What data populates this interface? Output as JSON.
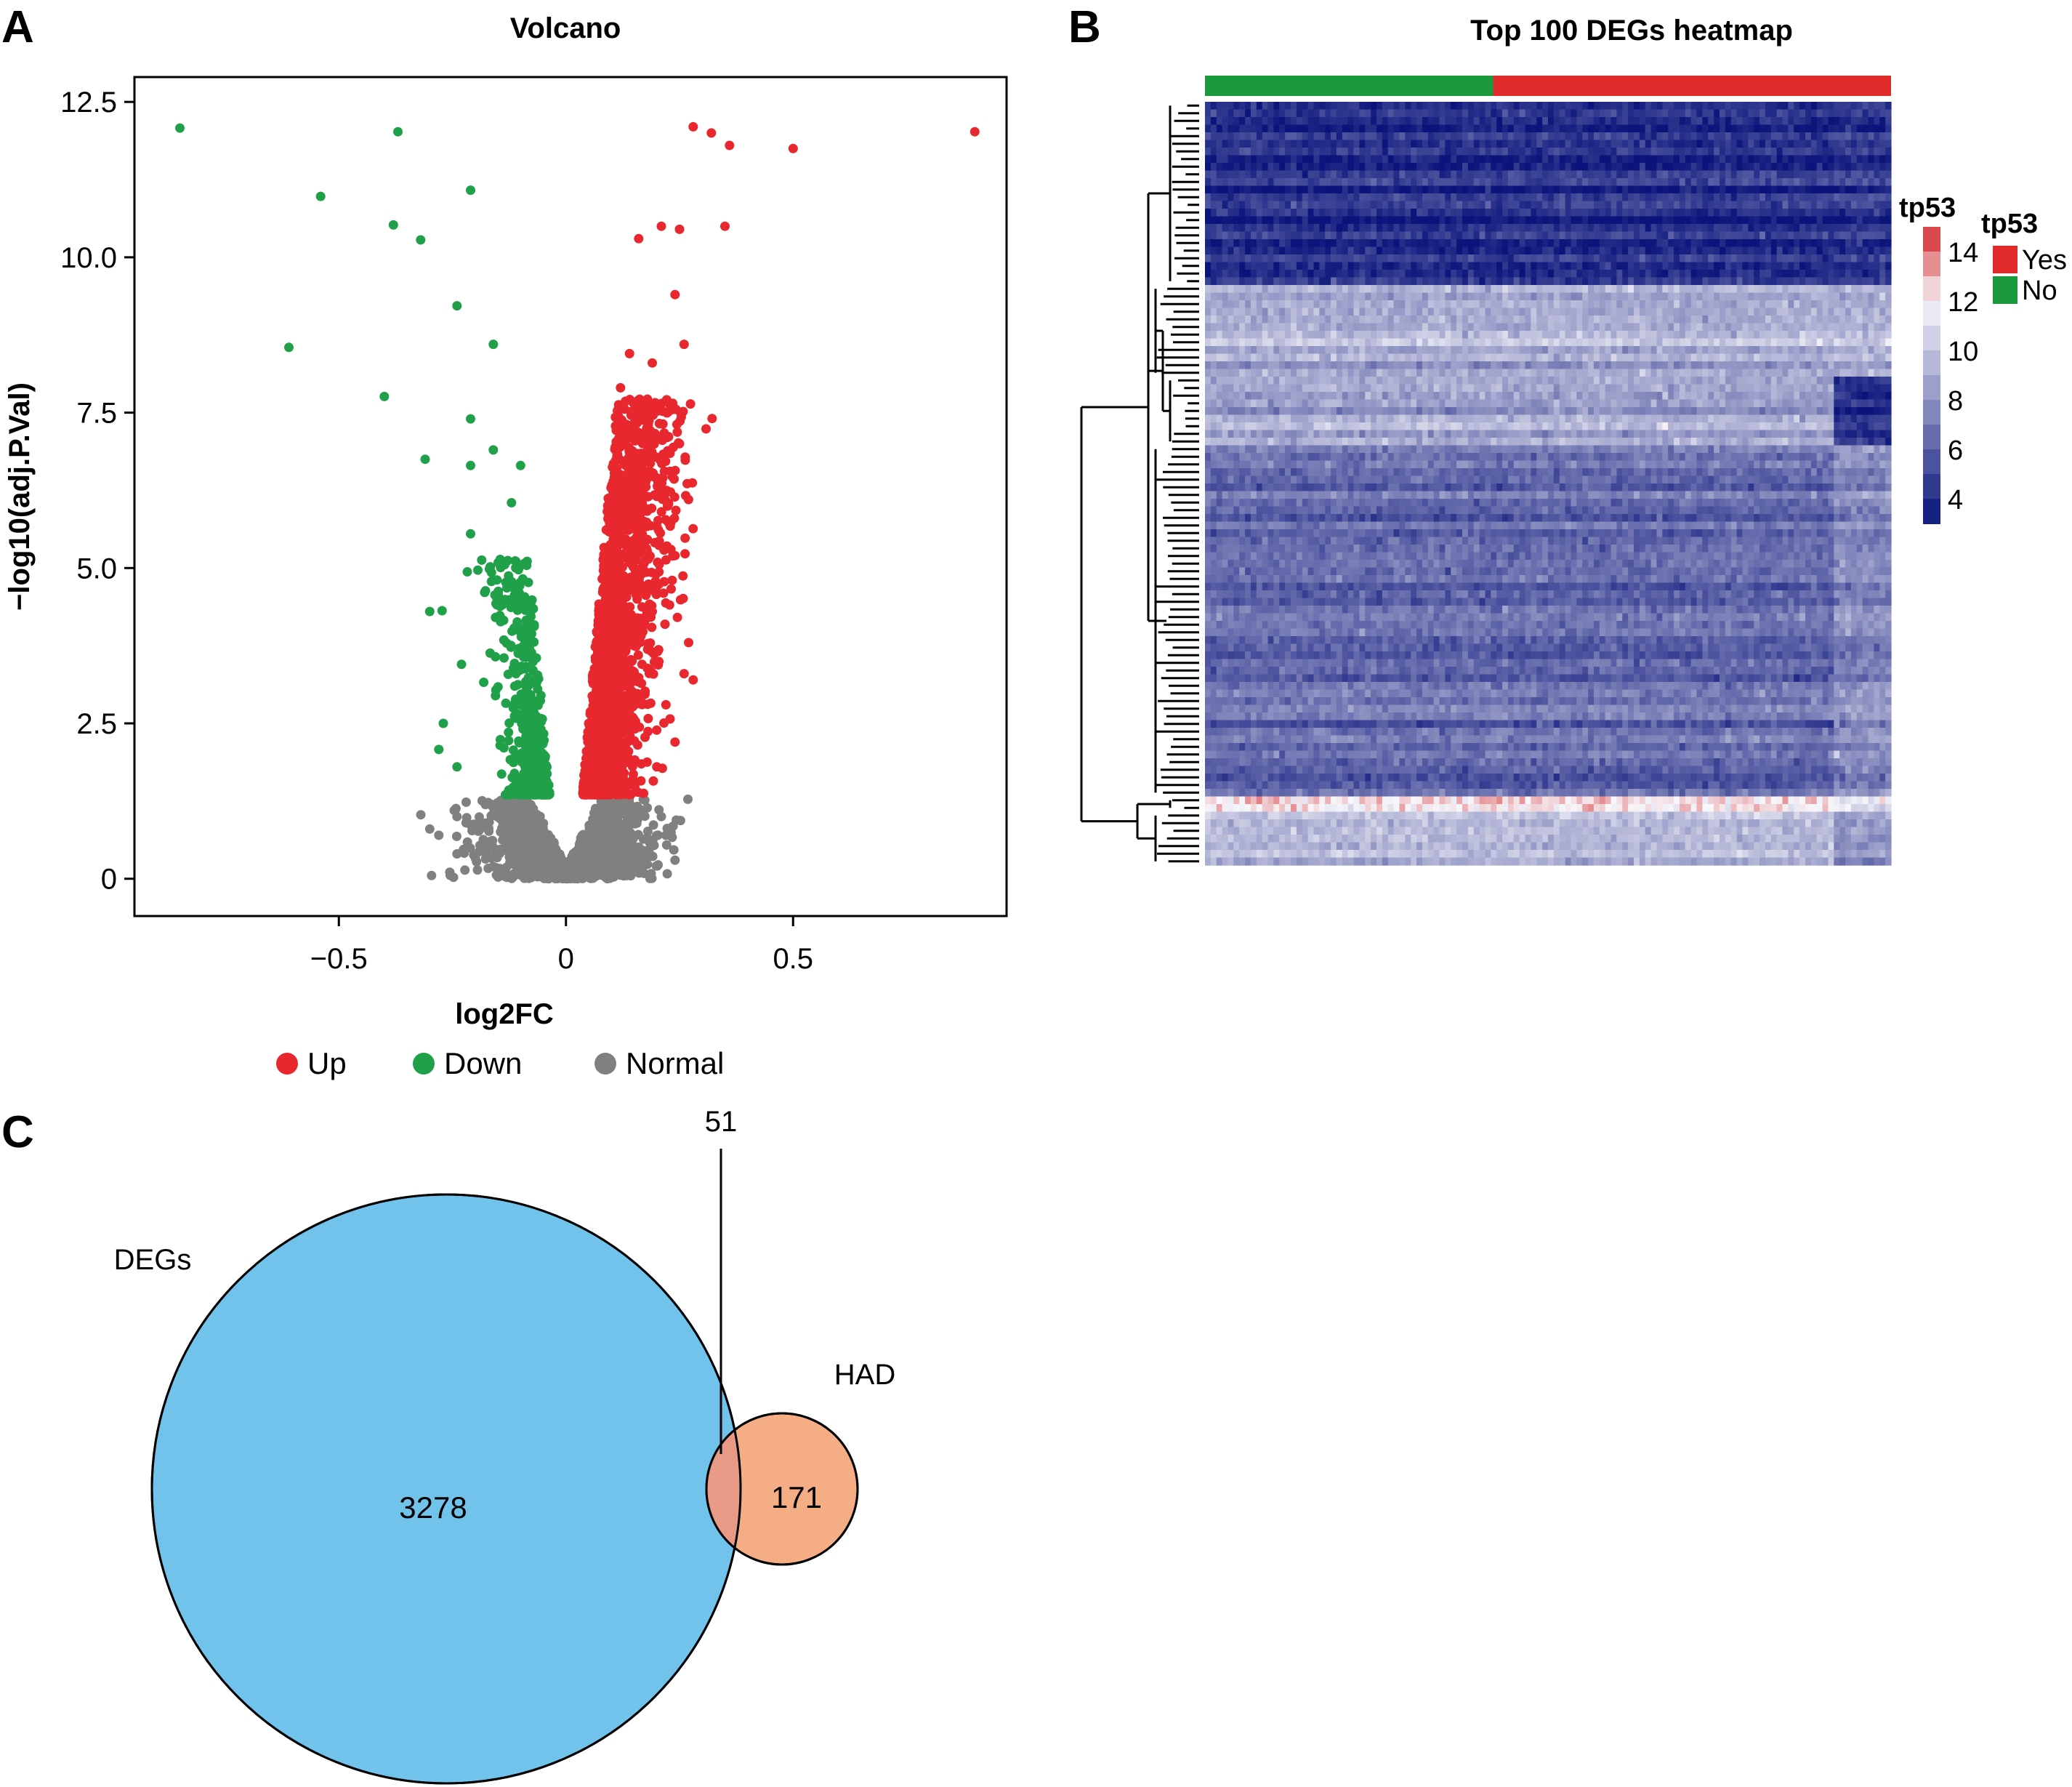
{
  "panels": {
    "a": "A",
    "b": "B",
    "c": "C"
  },
  "volcano": {
    "chart_data": {
      "type": "scatter",
      "title": "Volcano",
      "xlabel": "log2FC",
      "ylabel": "−log10(adj.P.Val)",
      "xlim": [
        -0.95,
        0.97
      ],
      "ylim": [
        -0.6,
        12.9
      ],
      "x_ticks": [
        -0.5,
        0,
        0.5
      ],
      "x_tick_labels": [
        "−0.5",
        "0",
        "0.5"
      ],
      "y_ticks": [
        0,
        2.5,
        5.0,
        7.5,
        10.0,
        12.5
      ],
      "y_tick_labels": [
        "0",
        "2.5",
        "5.0",
        "7.5",
        "10.0",
        "12.5"
      ],
      "grid": false,
      "legend_position": "bottom",
      "series": [
        {
          "name": "Up",
          "color": "#e8282e",
          "points": [
            [
              0.28,
              12.1
            ],
            [
              0.32,
              12.0
            ],
            [
              0.36,
              11.8
            ],
            [
              0.5,
              11.75
            ],
            [
              0.9,
              12.02
            ],
            [
              0.21,
              10.5
            ],
            [
              0.25,
              10.45
            ],
            [
              0.35,
              10.5
            ],
            [
              0.16,
              10.3
            ],
            [
              0.24,
              9.4
            ],
            [
              0.26,
              8.6
            ],
            [
              0.19,
              8.3
            ],
            [
              0.14,
              8.45
            ],
            [
              0.12,
              7.9
            ],
            [
              0.23,
              7.6
            ],
            [
              0.25,
              7.0
            ],
            [
              0.18,
              6.9
            ],
            [
              0.11,
              6.5
            ],
            [
              0.21,
              6.2
            ],
            [
              0.1,
              5.9
            ],
            [
              0.16,
              5.7
            ],
            [
              0.24,
              5.2
            ],
            [
              0.09,
              4.8
            ],
            [
              0.19,
              4.3
            ],
            [
              0.27,
              3.8
            ],
            [
              0.26,
              3.3
            ],
            [
              0.28,
              3.2
            ],
            [
              0.22,
              2.8
            ],
            [
              0.24,
              2.2
            ],
            [
              0.2,
              1.8
            ],
            [
              0.07,
              3.6
            ],
            [
              0.05,
              2.5
            ]
          ]
        },
        {
          "name": "Down",
          "color": "#21a04a",
          "points": [
            [
              -0.85,
              12.08
            ],
            [
              -0.37,
              12.02
            ],
            [
              -0.54,
              10.98
            ],
            [
              -0.21,
              11.08
            ],
            [
              -0.38,
              10.52
            ],
            [
              -0.32,
              10.28
            ],
            [
              -0.24,
              9.22
            ],
            [
              -0.61,
              8.55
            ],
            [
              -0.16,
              8.6
            ],
            [
              -0.4,
              7.76
            ],
            [
              -0.21,
              7.4
            ],
            [
              -0.31,
              6.75
            ],
            [
              -0.16,
              6.9
            ],
            [
              -0.21,
              6.65
            ],
            [
              -0.1,
              6.65
            ],
            [
              -0.12,
              6.05
            ],
            [
              -0.21,
              5.55
            ],
            [
              -0.14,
              5.1
            ],
            [
              -0.3,
              4.3
            ],
            [
              -0.23,
              3.45
            ],
            [
              -0.27,
              2.5
            ],
            [
              -0.28,
              2.08
            ],
            [
              -0.24,
              1.8
            ],
            [
              -0.15,
              4.6
            ],
            [
              -0.11,
              3.3
            ],
            [
              -0.08,
              2.4
            ]
          ]
        },
        {
          "name": "Normal",
          "color": "#808080",
          "points": [
            [
              -0.3,
              0.8
            ],
            [
              -0.28,
              0.7
            ],
            [
              -0.24,
              1.0
            ],
            [
              -0.24,
              0.4
            ],
            [
              -0.22,
              0.9
            ],
            [
              -0.18,
              0.6
            ],
            [
              -0.15,
              1.1
            ],
            [
              -0.12,
              0.5
            ],
            [
              -0.08,
              0.3
            ],
            [
              0,
              0
            ],
            [
              0.05,
              0.2
            ],
            [
              0.1,
              0.6
            ],
            [
              0.15,
              0.9
            ],
            [
              0.18,
              0.4
            ],
            [
              0.21,
              1.0
            ],
            [
              0.22,
              0.7
            ],
            [
              0.24,
              0.3
            ]
          ]
        }
      ]
    }
  },
  "heatmap": {
    "chart_data": {
      "type": "heatmap",
      "title": "Top 100 DEGs heatmap",
      "n_rows": 100,
      "n_cols": 120,
      "group_annotation": {
        "title": "tp53",
        "groups": [
          {
            "label": "No",
            "color": "#1a9a3c",
            "fraction": 0.42
          },
          {
            "label": "Yes",
            "color": "#e12a2a",
            "fraction": 0.58
          }
        ]
      },
      "colorbar": {
        "title": "tp53",
        "ticks": [
          14,
          12,
          10,
          8,
          6,
          4
        ],
        "range": [
          3,
          15
        ],
        "low_color": "#0a147a",
        "mid_color": "#f7f7fb",
        "high_color": "#d4262a"
      },
      "row_clusters": [
        {
          "start": 0,
          "end": 24,
          "level": 4.4,
          "right_group": 4.6
        },
        {
          "start": 24,
          "end": 36,
          "level": 8.8,
          "right_group": 8.9
        },
        {
          "start": 36,
          "end": 45,
          "level": 9.0,
          "right_group": 4.4
        },
        {
          "start": 45,
          "end": 91,
          "level": 6.4,
          "right_group": 7.6
        },
        {
          "start": 91,
          "end": 93,
          "level": 12.5,
          "right_group": 11.5
        },
        {
          "start": 93,
          "end": 100,
          "level": 9.6,
          "right_group": 8.3
        }
      ]
    }
  },
  "venn": {
    "chart_data": {
      "type": "venn",
      "sets": [
        {
          "name": "DEGs",
          "only": 3278,
          "color": "#72c3ec"
        },
        {
          "name": "HAD",
          "only": 171,
          "color": "#f5ad85"
        }
      ],
      "intersection": 51,
      "intersection_color": "#e99a86",
      "labels": {
        "set_a": "DEGs",
        "set_b": "HAD",
        "only_a": "3278",
        "only_b": "171",
        "both": "51"
      }
    }
  }
}
